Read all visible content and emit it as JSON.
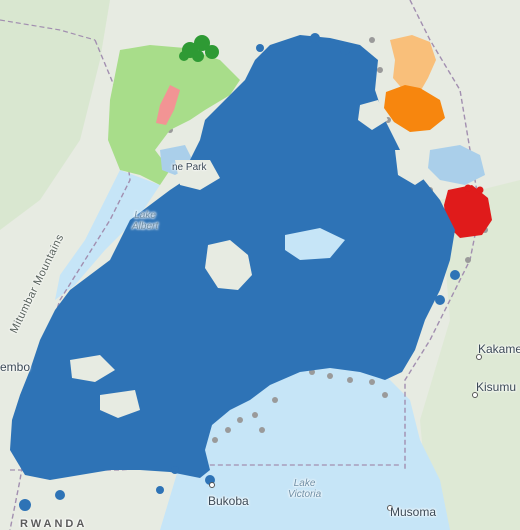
{
  "map": {
    "colors": {
      "land": "#e7ebe2",
      "land_green": "#d9e8cf",
      "water": "#c6e5f7",
      "cluster_main": "#2e73b6",
      "cluster_light_green": "#a8dd8a",
      "cluster_dark_green": "#2e9a34",
      "cluster_pink": "#f29494",
      "cluster_light_blue": "#aacfea",
      "cluster_peach": "#f9bf7a",
      "cluster_orange": "#f7860e",
      "cluster_red": "#e01b1b",
      "unassigned_points": "#9a9a9a"
    },
    "labels": {
      "mountain": "Mitumbar Mountains",
      "lake_albert_line1": "Lake",
      "lake_albert_line2": "Albert",
      "lake_victoria_line1": "Lake",
      "lake_victoria_line2": "Victoria",
      "partial_park": "ne Park",
      "partial_city_west": "embo",
      "city_kakamega": "Kakame",
      "city_kisumu": "Kisumu",
      "city_bukoba": "Bukoba",
      "city_musoma": "Musoma",
      "country_rwanda": "RWANDA"
    }
  }
}
